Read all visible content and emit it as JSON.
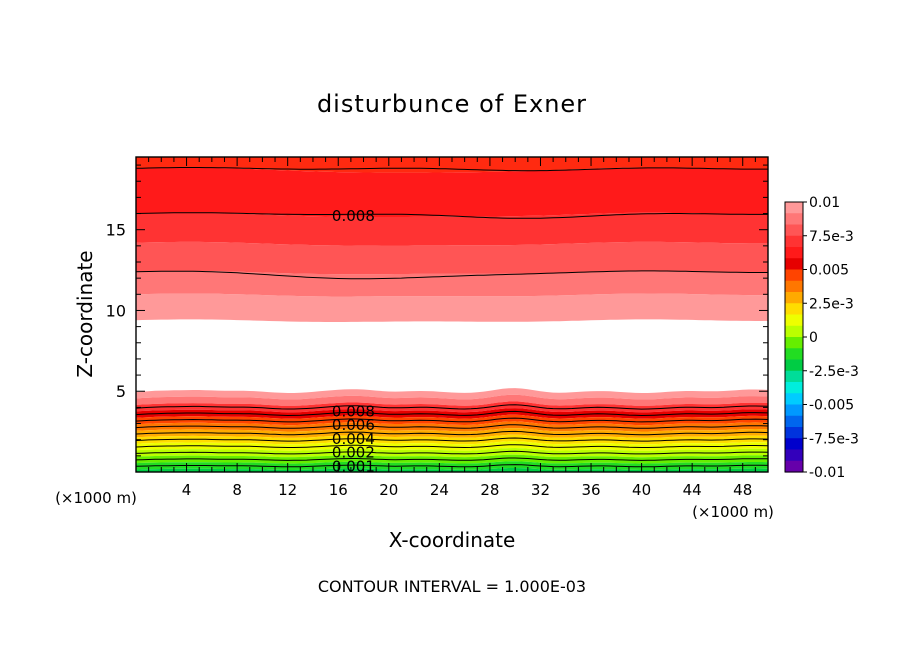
{
  "chart_data": {
    "type": "heatmap",
    "title": "disturbunce of Exner",
    "xlabel": "X-coordinate",
    "ylabel": "Z-coordinate",
    "x_unit": "(×1000 m)",
    "y_unit": "(×1000 m)",
    "xlim": [
      0,
      50
    ],
    "ylim": [
      0,
      19.5
    ],
    "x_ticks": [
      4,
      8,
      12,
      16,
      20,
      24,
      28,
      32,
      36,
      40,
      44,
      48
    ],
    "x_tick_labels": [
      "4",
      "8",
      "12",
      "16",
      "20",
      "24",
      "28",
      "32",
      "36",
      "40",
      "44",
      "48"
    ],
    "y_ticks": [
      5,
      10,
      15
    ],
    "y_tick_labels": [
      "5",
      "10",
      "15"
    ],
    "footnote": "CONTOUR INTERVAL = 1.000E-03",
    "colorbar": {
      "min": -0.01,
      "max": 0.01,
      "tick_values": [
        0.01,
        0.0075,
        0.005,
        0.0025,
        0,
        -0.0025,
        -0.005,
        -0.0075,
        -0.01
      ],
      "tick_labels": [
        "0.01",
        "7.5e-3",
        "0.005",
        "2.5e-3",
        "0",
        "-2.5e-3",
        "-0.005",
        "-7.5e-3",
        "-0.01"
      ],
      "colors_top_to_bottom": [
        "#ff9999",
        "#ff7777",
        "#ff5555",
        "#ff3333",
        "#ff1a1a",
        "#e60000",
        "#ff4400",
        "#ff7700",
        "#ffaa00",
        "#ffdd00",
        "#eeff00",
        "#bbff00",
        "#66ee00",
        "#22dd22",
        "#00cc44",
        "#00dd99",
        "#00eedd",
        "#00ccff",
        "#0099ff",
        "#0066ee",
        "#0033dd",
        "#0000cc",
        "#3300bb",
        "#6600aa"
      ]
    },
    "contour_levels": [
      0.001,
      0.002,
      0.003,
      0.004,
      0.005,
      0.006,
      0.007,
      0.008,
      0.009
    ],
    "contour_labels": [
      {
        "text": "0.008",
        "x": 17.2,
        "z": 15.85
      },
      {
        "text": "0.008",
        "x": 17.2,
        "z": 3.75
      },
      {
        "text": "0.006",
        "x": 17.2,
        "z": 2.9
      },
      {
        "text": "0.004",
        "x": 17.2,
        "z": 2.05
      },
      {
        "text": "0.002",
        "x": 17.2,
        "z": 1.2
      },
      {
        "text": "0.001",
        "x": 17.2,
        "z": 0.35
      }
    ],
    "upper_bands": [
      {
        "from_z": 9.4,
        "to_z": 11.0,
        "value": 0.0098,
        "color": "#ff9999"
      },
      {
        "from_z": 11.0,
        "to_z": 12.4,
        "value": 0.0094,
        "color": "#ff7777"
      },
      {
        "from_z": 12.4,
        "to_z": 14.2,
        "value": 0.0088,
        "color": "#ff5555"
      },
      {
        "from_z": 14.2,
        "to_z": 16.0,
        "value": 0.0083,
        "color": "#ff3333"
      },
      {
        "from_z": 16.0,
        "to_z": 18.8,
        "value": 0.0078,
        "color": "#ff1a1a"
      },
      {
        "from_z": 18.8,
        "to_z": 19.5,
        "value": 0.0073,
        "color": "#ff2a10"
      }
    ],
    "upper_contours": [
      {
        "z": 12.4,
        "dip_at_x": 19.5,
        "dip_depth": 0.45
      },
      {
        "z": 16.0,
        "dip_at_x": 30,
        "dip_depth": 0.25
      },
      {
        "z": 18.8,
        "dip_at_x": 30,
        "dip_depth": 0.1
      }
    ],
    "lower_bands": [
      {
        "from_z": 4.55,
        "to_z": 4.95,
        "value": 0.0098,
        "color": "#ff9999"
      },
      {
        "from_z": 4.15,
        "to_z": 4.55,
        "value": 0.0094,
        "color": "#ff7777"
      },
      {
        "from_z": 3.75,
        "to_z": 4.15,
        "value": 0.0088,
        "color": "#ff3333"
      },
      {
        "from_z": 3.35,
        "to_z": 3.75,
        "value": 0.0078,
        "color": "#e60000"
      },
      {
        "from_z": 2.95,
        "to_z": 3.35,
        "value": 0.0068,
        "color": "#ff4400"
      },
      {
        "from_z": 2.55,
        "to_z": 2.95,
        "value": 0.0058,
        "color": "#ff7700"
      },
      {
        "from_z": 2.15,
        "to_z": 2.55,
        "value": 0.0048,
        "color": "#ffaa00"
      },
      {
        "from_z": 1.75,
        "to_z": 2.15,
        "value": 0.0038,
        "color": "#ffdd00"
      },
      {
        "from_z": 1.35,
        "to_z": 1.75,
        "value": 0.0028,
        "color": "#eeff00"
      },
      {
        "from_z": 0.95,
        "to_z": 1.35,
        "value": 0.0018,
        "color": "#bbff00"
      },
      {
        "from_z": 0.55,
        "to_z": 0.95,
        "value": 0.0012,
        "color": "#66ee00"
      },
      {
        "from_z": 0.15,
        "to_z": 0.55,
        "value": 0.0006,
        "color": "#22dd22"
      },
      {
        "from_z": 0.0,
        "to_z": 0.15,
        "value": 0.0002,
        "color": "#00cc44"
      }
    ],
    "lower_contours": [
      0.35,
      0.75,
      1.15,
      1.55,
      1.95,
      2.35,
      2.75,
      3.15,
      3.55,
      3.95
    ],
    "wave_bumps_x": [
      5,
      18,
      30,
      48
    ],
    "wave_bump_amplitude": 0.18
  }
}
